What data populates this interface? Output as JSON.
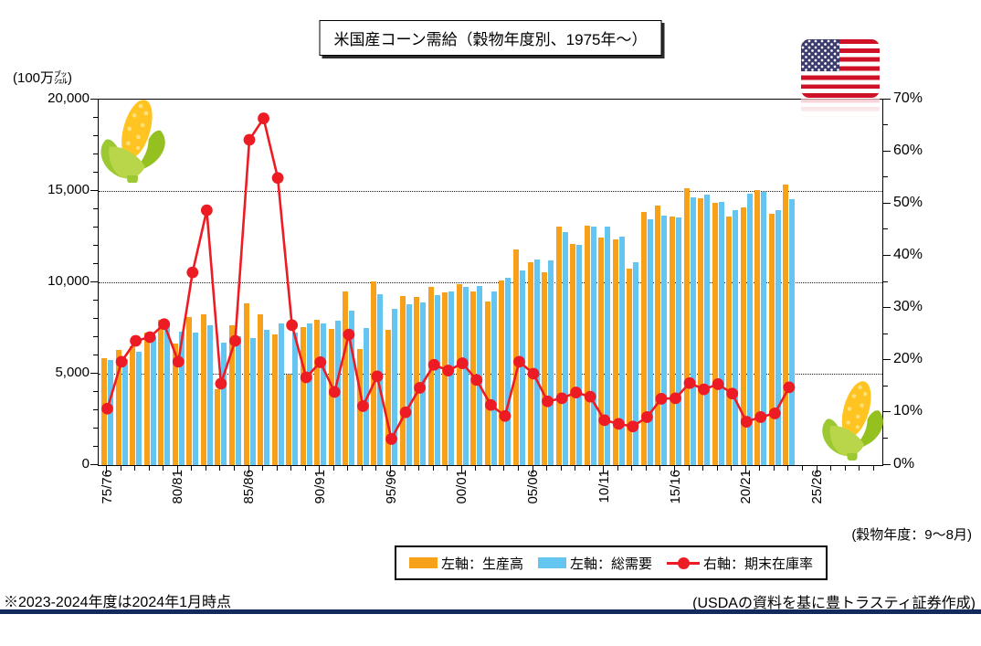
{
  "title": "米国産コーン需給（穀物年度別、1975年～）",
  "left_axis_unit": "(100万㌴)",
  "crop_year_note": "(穀物年度：9～8月)",
  "footnote": "※2023-2024年度は2024年1月時点",
  "source_note": "(USDAの資料を基に豊トラスティ証券作成)",
  "decorations": [
    "us-flag-icon",
    "corn-icon-top-left",
    "corn-icon-bottom-right"
  ],
  "colors": {
    "production_bar": "#F7A11A",
    "demand_bar": "#63C5F0",
    "stock_ratio_line": "#ED1C24",
    "bottom_rule": "#122B5C",
    "flag_red": "#CE1126",
    "flag_blue": "#3C3B6E"
  },
  "chart_data": {
    "type": "bar",
    "title": "米国産コーン需給（穀物年度別、1975年～）",
    "categories": [
      "75/76",
      "76/77",
      "77/78",
      "78/79",
      "79/80",
      "80/81",
      "81/82",
      "82/83",
      "83/84",
      "84/85",
      "85/86",
      "86/87",
      "87/88",
      "88/89",
      "89/90",
      "90/91",
      "91/92",
      "92/93",
      "93/94",
      "94/95",
      "95/96",
      "96/97",
      "97/98",
      "98/99",
      "99/00",
      "00/01",
      "01/02",
      "02/03",
      "03/04",
      "04/05",
      "05/06",
      "06/07",
      "07/08",
      "08/09",
      "09/10",
      "10/11",
      "11/12",
      "12/13",
      "13/14",
      "14/15",
      "15/16",
      "16/17",
      "17/18",
      "18/19",
      "19/20",
      "20/21",
      "21/22",
      "22/23",
      "23/24"
    ],
    "series": [
      {
        "name": "左軸：生産高",
        "type": "bar",
        "axis": "left",
        "color": "#F7A11A",
        "values": [
          5841,
          6289,
          6505,
          7268,
          7939,
          6639,
          8119,
          8235,
          4174,
          7672,
          8875,
          8226,
          7131,
          4929,
          7532,
          7934,
          7475,
          9477,
          6338,
          10051,
          7400,
          9233,
          9207,
          9759,
          9431,
          9915,
          9503,
          8967,
          10089,
          11806,
          11112,
          10531,
          13038,
          12092,
          13092,
          12447,
          12360,
          10755,
          13829,
          14216,
          13602,
          15148,
          14609,
          14340,
          13620,
          14111,
          15074,
          13730,
          15342
        ]
      },
      {
        "name": "左軸：総需要",
        "type": "bar",
        "axis": "left",
        "color": "#63C5F0",
        "values": [
          5770,
          5790,
          6210,
          7000,
          7600,
          7280,
          7250,
          7650,
          6690,
          7030,
          6970,
          7385,
          7757,
          7260,
          7726,
          7761,
          7915,
          8471,
          7514,
          9350,
          8548,
          8789,
          8886,
          9298,
          9515,
          9740,
          9815,
          9491,
          10230,
          10662,
          11270,
          11207,
          12737,
          12056,
          13066,
          13055,
          12479,
          11083,
          13454,
          13664,
          13544,
          14649,
          14793,
          14414,
          13963,
          14862,
          14931,
          13945,
          14565
        ]
      },
      {
        "name": "右軸：期末在庫率",
        "type": "line",
        "axis": "right",
        "color": "#ED1C24",
        "values": [
          10.8,
          19.8,
          23.8,
          24.5,
          27.0,
          19.8,
          36.9,
          48.8,
          15.6,
          23.8,
          62.3,
          66.4,
          55.0,
          26.8,
          16.8,
          19.7,
          14.0,
          25.0,
          11.3,
          17.0,
          5.0,
          10.1,
          14.8,
          19.2,
          18.1,
          19.5,
          16.3,
          11.5,
          9.4,
          19.8,
          17.5,
          12.2,
          12.8,
          13.9,
          13.1,
          8.6,
          7.9,
          7.4,
          9.2,
          12.7,
          12.8,
          15.7,
          14.5,
          15.5,
          13.7,
          8.3,
          9.2,
          9.9,
          14.9
        ]
      }
    ],
    "left_axis": {
      "label": "(100万㌴)",
      "min": 0,
      "max": 20000,
      "major": 5000,
      "minor": 1000,
      "tick_labels": [
        "0",
        "5,000",
        "10,000",
        "15,000",
        "20,000"
      ]
    },
    "right_axis": {
      "min": 0,
      "max": 70,
      "major": 10,
      "minor": 5,
      "unit": "%",
      "tick_labels": [
        "0%",
        "10%",
        "20%",
        "30%",
        "40%",
        "50%",
        "60%",
        "70%"
      ]
    },
    "x_tick_labels": [
      "75/76",
      "80/81",
      "85/86",
      "90/91",
      "95/96",
      "00/01",
      "05/06",
      "10/11",
      "15/16",
      "20/21",
      "25/26"
    ],
    "x_slots_total": 55,
    "gridline_values": [
      5000,
      10000,
      15000
    ],
    "grid": "dotted-horizontal",
    "legend_position": "bottom"
  }
}
